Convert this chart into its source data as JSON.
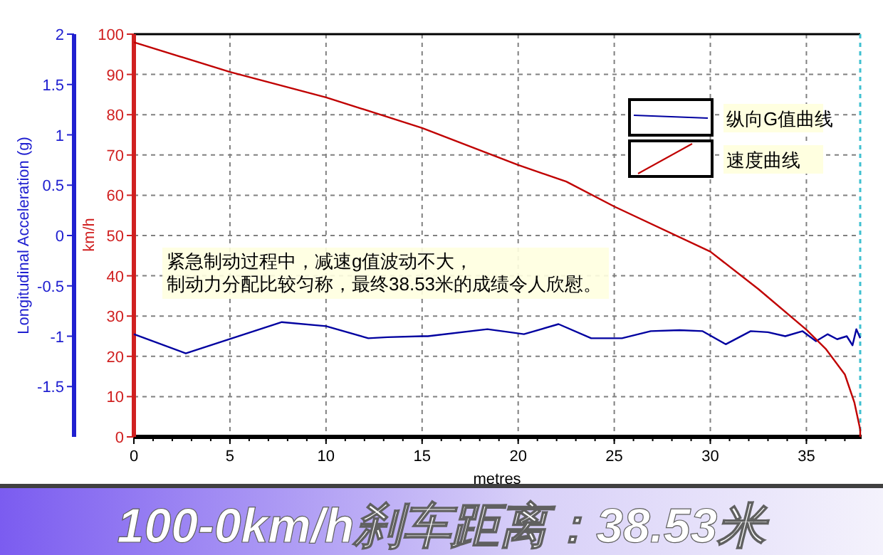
{
  "chart_data": {
    "type": "line",
    "title": "100-0km/h刹车距离：38.53米",
    "xlabel": "metres",
    "ylabel": "Longitudinal Acceleration (g)",
    "y2label": "km/h",
    "annotations": [
      "紧急制动过程中，减速g值波动不大，",
      "制动力分配比较匀称，最终38.53米的成绩令人欣慰。"
    ],
    "xlim": [
      0,
      37.8
    ],
    "xticks": [
      0,
      5,
      10,
      15,
      20,
      25,
      30,
      35
    ],
    "ylim": [
      -2,
      2
    ],
    "yticks": [
      -1.5,
      -1,
      -0.5,
      0,
      0.5,
      1,
      1.5,
      2
    ],
    "y2lim": [
      0,
      100
    ],
    "y2ticks": [
      0,
      10,
      20,
      30,
      40,
      50,
      60,
      70,
      80,
      90,
      100
    ],
    "grid": true,
    "legend": "top right",
    "marker": "none",
    "line_style": "solid",
    "series": [
      {
        "name": "纵向G值曲线",
        "color": "#0000a0",
        "axis": "y",
        "x": [
          0,
          2.7,
          7.7,
          10,
          12.2,
          13.2,
          15,
          15.3,
          18.4,
          20.3,
          22.1,
          23.8,
          25.4,
          26.9,
          28.4,
          29.6,
          30.8,
          32.1,
          33.0,
          33.9,
          34.8,
          35.5,
          36.1,
          36.6,
          37.1,
          37.4,
          37.6,
          37.8
        ],
        "values": [
          -0.98,
          -1.17,
          -0.86,
          -0.9,
          -1.02,
          -1.01,
          -1.0,
          -1.0,
          -0.93,
          -0.98,
          -0.88,
          -1.02,
          -1.02,
          -0.95,
          -0.94,
          -0.95,
          -1.08,
          -0.95,
          -0.96,
          -1.0,
          -0.95,
          -1.05,
          -0.98,
          -1.03,
          -1.0,
          -1.09,
          -0.93,
          -1.02
        ]
      },
      {
        "name": "速度曲线",
        "color": "#c00000",
        "axis": "y2",
        "x": [
          0,
          5,
          10,
          15,
          20,
          22.5,
          25,
          30,
          32.5,
          35,
          36,
          37,
          37.5,
          37.8,
          37.8
        ],
        "values": [
          98,
          90.6,
          84.3,
          76.7,
          67.5,
          63.4,
          57.2,
          46,
          36.7,
          26.6,
          21.9,
          15.5,
          8.5,
          1.8,
          0
        ]
      }
    ]
  }
}
